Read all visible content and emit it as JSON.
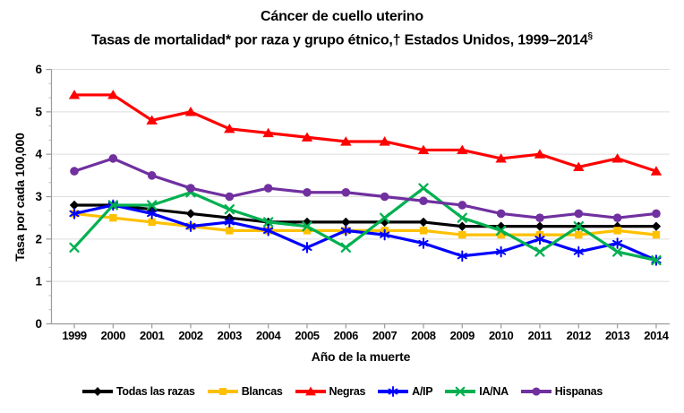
{
  "page": {
    "background": "#ffffff"
  },
  "chart_data": {
    "type": "line",
    "title_line1": "Cáncer de cuello uterino",
    "title_line2": "Tasas de mortalidad* por raza y grupo étnico,† Estados Unidos, 1999–2014",
    "title_superscript": "§",
    "xlabel": "Año de la muerte",
    "ylabel": "Tasa por cada 100,000",
    "ylim": [
      0,
      6
    ],
    "ytick_step": 1,
    "grid": true,
    "legend_position": "bottom",
    "categories": [
      "1999",
      "2000",
      "2001",
      "2002",
      "2003",
      "2004",
      "2005",
      "2006",
      "2007",
      "2008",
      "2009",
      "2010",
      "2011",
      "2012",
      "2013",
      "2014"
    ],
    "series": [
      {
        "name": "Todas las razas",
        "color": "#000000",
        "marker": "diamond",
        "values": [
          2.8,
          2.8,
          2.7,
          2.6,
          2.5,
          2.4,
          2.4,
          2.4,
          2.4,
          2.4,
          2.3,
          2.3,
          2.3,
          2.3,
          2.3,
          2.3
        ]
      },
      {
        "name": "Blancas",
        "color": "#FFC000",
        "marker": "square",
        "values": [
          2.6,
          2.5,
          2.4,
          2.3,
          2.2,
          2.2,
          2.2,
          2.2,
          2.2,
          2.2,
          2.1,
          2.1,
          2.1,
          2.1,
          2.2,
          2.1
        ]
      },
      {
        "name": "Negras",
        "color": "#FF0000",
        "marker": "triangle",
        "values": [
          5.4,
          5.4,
          4.8,
          5.0,
          4.6,
          4.5,
          4.4,
          4.3,
          4.3,
          4.1,
          4.1,
          3.9,
          4.0,
          3.7,
          3.9,
          3.6
        ]
      },
      {
        "name": "A/IP",
        "color": "#0000FF",
        "marker": "star",
        "values": [
          2.6,
          2.8,
          2.6,
          2.3,
          2.4,
          2.2,
          1.8,
          2.2,
          2.1,
          1.9,
          1.6,
          1.7,
          2.0,
          1.7,
          1.9,
          1.5
        ]
      },
      {
        "name": "IA/NA",
        "color": "#00B050",
        "marker": "x",
        "values": [
          1.8,
          2.8,
          2.8,
          3.1,
          2.7,
          2.4,
          2.3,
          1.8,
          2.5,
          3.2,
          2.5,
          2.2,
          1.7,
          2.3,
          1.7,
          1.5
        ]
      },
      {
        "name": "Hispanas",
        "color": "#7030A0",
        "marker": "circle",
        "values": [
          3.6,
          3.9,
          3.5,
          3.2,
          3.0,
          3.2,
          3.1,
          3.1,
          3.0,
          2.9,
          2.8,
          2.6,
          2.5,
          2.6,
          2.5,
          2.6
        ]
      }
    ]
  }
}
